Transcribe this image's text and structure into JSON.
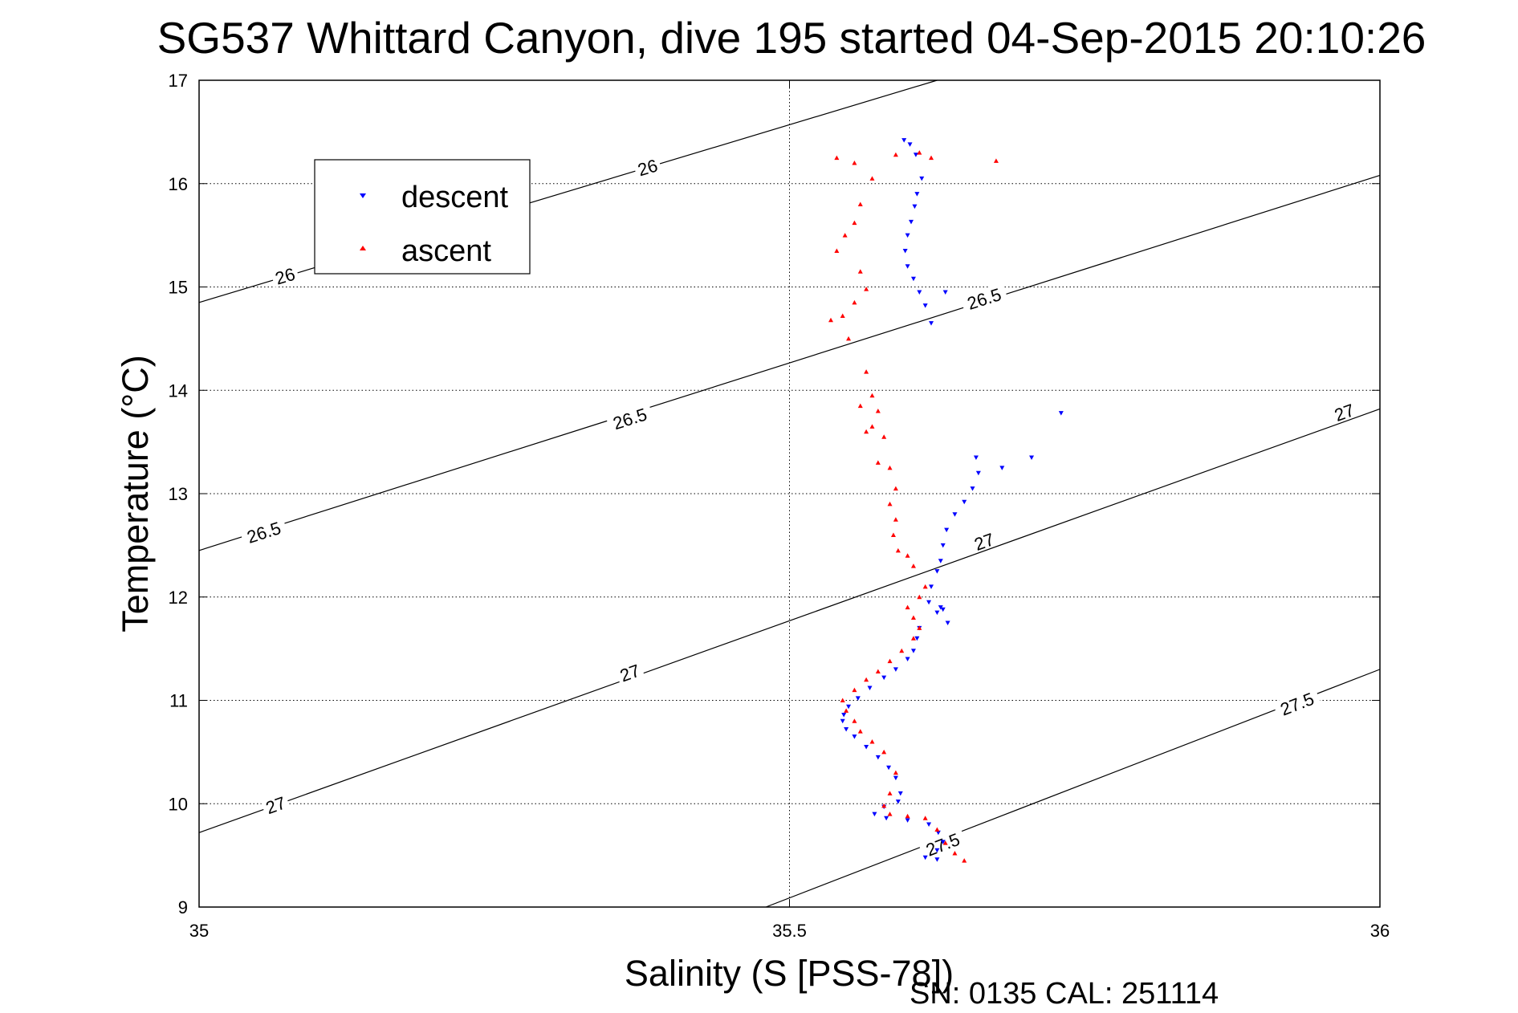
{
  "chart_data": {
    "type": "scatter",
    "title": "SG537 Whittard Canyon, dive 195 started 04-Sep-2015 20:10:26",
    "xlabel": "Salinity (S [PSS-78])",
    "ylabel": "Temperature (°C)",
    "footer": "SN: 0135  CAL: 251114",
    "xlim": [
      35,
      36
    ],
    "ylim": [
      9,
      17
    ],
    "xticks": [
      "35",
      "35.5",
      "36"
    ],
    "yticks": [
      "9",
      "10",
      "11",
      "12",
      "13",
      "14",
      "15",
      "16",
      "17"
    ],
    "grid": true,
    "legend": {
      "placement": "top-left",
      "entries": [
        {
          "label": "descent",
          "color": "#0000ff",
          "marker": "triangle-down"
        },
        {
          "label": "ascent",
          "color": "#ff0000",
          "marker": "triangle-up"
        }
      ]
    },
    "density_contours": [
      {
        "level": "26",
        "points": [
          [
            35.0,
            14.85
          ],
          [
            35.625,
            17.0
          ]
        ],
        "labels": [
          [
            35.073,
            15.1
          ],
          [
            35.38,
            16.15
          ]
        ]
      },
      {
        "level": "26.5",
        "points": [
          [
            35.0,
            12.45
          ],
          [
            36.0,
            16.08
          ]
        ],
        "labels": [
          [
            35.055,
            12.62
          ],
          [
            35.365,
            13.72
          ],
          [
            35.665,
            14.88
          ]
        ]
      },
      {
        "level": "27",
        "points": [
          [
            35.0,
            9.72
          ],
          [
            36.0,
            13.82
          ]
        ],
        "labels": [
          [
            35.065,
            9.98
          ],
          [
            35.365,
            11.26
          ],
          [
            35.665,
            12.53
          ],
          [
            35.97,
            13.78
          ]
        ]
      },
      {
        "level": "27.5",
        "points": [
          [
            35.48,
            9.0
          ],
          [
            36.0,
            11.3
          ]
        ],
        "labels": [
          [
            35.63,
            9.6
          ],
          [
            35.93,
            10.96
          ]
        ]
      }
    ],
    "series": [
      {
        "name": "descent",
        "color": "#0000ff",
        "marker": "triangle-down",
        "x": [
          35.597,
          35.602,
          35.607,
          35.612,
          35.608,
          35.606,
          35.603,
          35.6,
          35.598,
          35.6,
          35.605,
          35.61,
          35.615,
          35.62,
          35.632,
          35.658,
          35.68,
          35.705,
          35.73,
          35.66,
          35.655,
          35.648,
          35.64,
          35.633,
          35.63,
          35.628,
          35.625,
          35.62,
          35.618,
          35.628,
          35.63,
          35.634,
          35.625,
          35.61,
          35.608,
          35.605,
          35.6,
          35.59,
          35.58,
          35.568,
          35.558,
          35.55,
          35.546,
          35.545,
          35.548,
          35.555,
          35.565,
          35.575,
          35.584,
          35.59,
          35.594,
          35.592,
          35.58,
          35.572,
          35.582,
          35.6,
          35.618,
          35.626,
          35.63,
          35.625,
          35.615,
          35.625
        ],
        "y": [
          16.42,
          16.38,
          16.28,
          16.05,
          15.9,
          15.78,
          15.63,
          15.5,
          15.35,
          15.2,
          15.08,
          14.95,
          14.82,
          14.65,
          14.95,
          13.35,
          13.25,
          13.35,
          13.78,
          13.2,
          13.05,
          12.92,
          12.8,
          12.65,
          12.5,
          12.35,
          12.25,
          12.1,
          11.95,
          11.9,
          11.88,
          11.75,
          11.85,
          11.7,
          11.6,
          11.48,
          11.4,
          11.3,
          11.22,
          11.12,
          11.02,
          10.94,
          10.86,
          10.8,
          10.72,
          10.65,
          10.55,
          10.45,
          10.35,
          10.25,
          10.1,
          10.02,
          9.97,
          9.9,
          9.86,
          9.84,
          9.8,
          9.72,
          9.63,
          9.55,
          9.48,
          9.46
        ]
      },
      {
        "name": "ascent",
        "color": "#ff0000",
        "marker": "triangle-up",
        "x": [
          35.54,
          35.555,
          35.57,
          35.59,
          35.61,
          35.62,
          35.675,
          35.56,
          35.555,
          35.547,
          35.54,
          35.56,
          35.565,
          35.555,
          35.545,
          35.535,
          35.55,
          35.565,
          35.57,
          35.575,
          35.58,
          35.585,
          35.59,
          35.575,
          35.57,
          35.565,
          35.56,
          35.585,
          35.59,
          35.588,
          35.592,
          35.6,
          35.605,
          35.615,
          35.61,
          35.6,
          35.605,
          35.61,
          35.605,
          35.595,
          35.585,
          35.575,
          35.565,
          35.555,
          35.545,
          35.548,
          35.555,
          35.56,
          35.57,
          35.58,
          35.59,
          35.585,
          35.58,
          35.585,
          35.6,
          35.615,
          35.625,
          35.632,
          35.64,
          35.648
        ],
        "y": [
          16.25,
          16.2,
          16.05,
          16.28,
          16.3,
          16.25,
          16.22,
          15.8,
          15.62,
          15.5,
          15.35,
          15.15,
          14.98,
          14.85,
          14.72,
          14.68,
          14.5,
          14.18,
          13.95,
          13.8,
          13.55,
          13.25,
          13.05,
          13.3,
          13.65,
          13.6,
          13.85,
          12.9,
          12.75,
          12.6,
          12.45,
          12.4,
          12.3,
          12.1,
          12.0,
          11.9,
          11.8,
          11.7,
          11.6,
          11.48,
          11.38,
          11.28,
          11.2,
          11.1,
          11.0,
          10.9,
          10.8,
          10.7,
          10.6,
          10.5,
          10.3,
          10.1,
          9.98,
          9.9,
          9.88,
          9.86,
          9.75,
          9.62,
          9.52,
          9.45
        ]
      }
    ]
  }
}
